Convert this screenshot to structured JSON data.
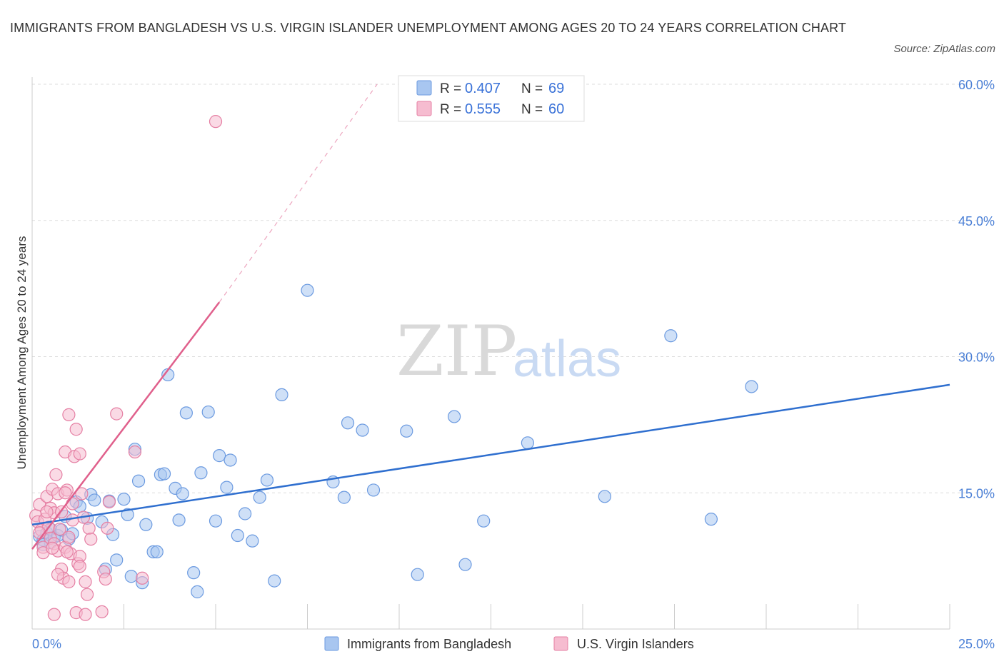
{
  "header": {
    "title": "IMMIGRANTS FROM BANGLADESH VS U.S. VIRGIN ISLANDER UNEMPLOYMENT AMONG AGES 20 TO 24 YEARS CORRELATION CHART",
    "source": "Source: ZipAtlas.com"
  },
  "watermark": {
    "zip": "ZIP",
    "atlas": "atlas"
  },
  "legend": {
    "r_label": "R =",
    "n_label": "N =",
    "entries": [
      {
        "r": "0.407",
        "n": "69",
        "color": "#a8c6f0",
        "stroke": "#6b9ae0"
      },
      {
        "r": "0.555",
        "n": "60",
        "color": "#f6bcd0",
        "stroke": "#e57fa3"
      }
    ]
  },
  "bottom_legend": [
    "Immigrants from Bangladesh",
    "U.S. Virgin Islanders"
  ],
  "colors": {
    "blue_fill": "#a8c6f0",
    "blue_stroke": "#6b9ae0",
    "blue_line": "#2f6fcf",
    "pink_fill": "#f6bcd0",
    "pink_stroke": "#e57fa3",
    "pink_line": "#e0608c",
    "grid": "#dddddd",
    "tick_text": "#4a7fd6"
  },
  "chart_data": {
    "type": "scatter",
    "ylabel": "Unemployment Among Ages 20 to 24 years",
    "xlim": [
      0,
      25
    ],
    "ylim": [
      0,
      60
    ],
    "x_tick_labels": [
      "0.0%",
      "25.0%"
    ],
    "y_ticks": [
      15,
      30,
      45,
      60
    ],
    "y_tick_labels": [
      "15.0%",
      "30.0%",
      "45.0%",
      "60.0%"
    ],
    "grid": true,
    "series": [
      {
        "name": "Immigrants from Bangladesh",
        "trend": {
          "x0": 0,
          "y0": 11.5,
          "x1": 25,
          "y1": 26.9
        },
        "points": [
          [
            0.2,
            10.2
          ],
          [
            0.3,
            9.8
          ],
          [
            0.4,
            10.6
          ],
          [
            0.5,
            9.5
          ],
          [
            0.6,
            10.1
          ],
          [
            0.5,
            11.0
          ],
          [
            0.7,
            10.3
          ],
          [
            0.8,
            10.9
          ],
          [
            1.0,
            9.9
          ],
          [
            1.1,
            10.5
          ],
          [
            1.2,
            14.0
          ],
          [
            1.3,
            13.5
          ],
          [
            1.5,
            12.2
          ],
          [
            1.6,
            14.8
          ],
          [
            1.7,
            14.2
          ],
          [
            1.9,
            11.8
          ],
          [
            2.0,
            6.6
          ],
          [
            2.1,
            14.1
          ],
          [
            2.2,
            10.4
          ],
          [
            2.3,
            7.6
          ],
          [
            2.5,
            14.3
          ],
          [
            2.6,
            12.6
          ],
          [
            2.7,
            5.8
          ],
          [
            2.8,
            19.8
          ],
          [
            2.9,
            16.3
          ],
          [
            3.0,
            5.1
          ],
          [
            3.1,
            11.5
          ],
          [
            3.3,
            8.5
          ],
          [
            3.4,
            8.5
          ],
          [
            3.5,
            17.0
          ],
          [
            3.6,
            17.1
          ],
          [
            3.7,
            28.0
          ],
          [
            3.9,
            15.5
          ],
          [
            4.0,
            12.0
          ],
          [
            4.1,
            14.9
          ],
          [
            4.2,
            23.8
          ],
          [
            4.4,
            6.2
          ],
          [
            4.5,
            4.1
          ],
          [
            4.6,
            17.2
          ],
          [
            4.8,
            23.9
          ],
          [
            5.0,
            11.9
          ],
          [
            5.1,
            19.1
          ],
          [
            5.3,
            15.6
          ],
          [
            5.4,
            18.6
          ],
          [
            5.6,
            10.3
          ],
          [
            5.8,
            12.7
          ],
          [
            6.0,
            9.7
          ],
          [
            6.2,
            14.5
          ],
          [
            6.6,
            5.3
          ],
          [
            6.8,
            25.8
          ],
          [
            7.5,
            37.3
          ],
          [
            8.2,
            16.2
          ],
          [
            8.5,
            14.5
          ],
          [
            8.6,
            22.7
          ],
          [
            9.0,
            21.9
          ],
          [
            9.3,
            15.3
          ],
          [
            10.2,
            21.8
          ],
          [
            10.5,
            6.0
          ],
          [
            11.5,
            23.4
          ],
          [
            11.8,
            7.1
          ],
          [
            12.3,
            11.9
          ],
          [
            13.5,
            20.5
          ],
          [
            15.6,
            14.6
          ],
          [
            17.4,
            32.3
          ],
          [
            18.5,
            12.1
          ],
          [
            19.6,
            26.7
          ],
          [
            0.3,
            9.3
          ],
          [
            0.9,
            12.4
          ],
          [
            6.4,
            16.4
          ]
        ]
      },
      {
        "name": "U.S. Virgin Islanders",
        "trend": {
          "x0": 0,
          "y0": 8.8,
          "x1": 5.1,
          "y1": 36.0,
          "x2": 9.4,
          "y2": 60.0
        },
        "points": [
          [
            0.1,
            12.5
          ],
          [
            0.15,
            11.8
          ],
          [
            0.2,
            13.7
          ],
          [
            0.25,
            10.9
          ],
          [
            0.3,
            9.0
          ],
          [
            0.3,
            8.4
          ],
          [
            0.35,
            12.1
          ],
          [
            0.4,
            14.6
          ],
          [
            0.45,
            11.2
          ],
          [
            0.5,
            13.3
          ],
          [
            0.5,
            10.0
          ],
          [
            0.55,
            15.4
          ],
          [
            0.6,
            12.8
          ],
          [
            0.6,
            9.4
          ],
          [
            0.65,
            17.0
          ],
          [
            0.7,
            8.6
          ],
          [
            0.7,
            14.9
          ],
          [
            0.75,
            11.0
          ],
          [
            0.8,
            6.6
          ],
          [
            0.8,
            12.9
          ],
          [
            0.85,
            5.6
          ],
          [
            0.9,
            19.5
          ],
          [
            0.9,
            9.0
          ],
          [
            0.95,
            15.3
          ],
          [
            1.0,
            5.2
          ],
          [
            1.0,
            10.1
          ],
          [
            1.05,
            8.3
          ],
          [
            1.1,
            13.8
          ],
          [
            1.15,
            19.0
          ],
          [
            1.2,
            22.0
          ],
          [
            1.25,
            7.2
          ],
          [
            1.3,
            19.3
          ],
          [
            1.35,
            14.9
          ],
          [
            1.4,
            12.3
          ],
          [
            1.45,
            5.2
          ],
          [
            1.5,
            3.8
          ],
          [
            1.55,
            11.1
          ],
          [
            1.6,
            9.9
          ],
          [
            1.3,
            8.0
          ],
          [
            1.2,
            1.8
          ],
          [
            1.45,
            1.6
          ],
          [
            1.9,
            1.9
          ],
          [
            0.6,
            1.6
          ],
          [
            1.95,
            6.3
          ],
          [
            2.0,
            5.5
          ],
          [
            2.05,
            11.1
          ],
          [
            2.1,
            14.0
          ],
          [
            1.0,
            23.6
          ],
          [
            2.3,
            23.7
          ],
          [
            2.8,
            19.5
          ],
          [
            3.0,
            5.6
          ],
          [
            5.0,
            55.9
          ],
          [
            0.9,
            15.0
          ],
          [
            0.4,
            12.9
          ],
          [
            0.2,
            10.6
          ],
          [
            0.55,
            8.9
          ],
          [
            1.1,
            12.0
          ],
          [
            0.7,
            6.0
          ],
          [
            1.3,
            6.9
          ],
          [
            0.95,
            8.5
          ]
        ]
      }
    ]
  }
}
